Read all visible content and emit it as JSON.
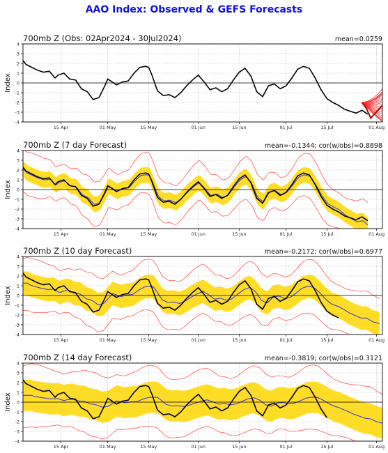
{
  "title": "AAO Index: Observed & GEFS Forecasts",
  "colors": {
    "title": "#1010e8",
    "observed": "#000000",
    "ensemble_member": "#ff2a2a",
    "ensemble_envelope": "#ff5555",
    "ensemble_spread": "#ffd700",
    "ensemble_mean": "#3f3fc8",
    "zero_line": "#000000",
    "grid": "#bbbbbb"
  },
  "chart_data": [
    {
      "type": "line",
      "title": "700mb Z (Obs: 02Apr2024 - 30Jul2024)",
      "stats": "mean=0.0259",
      "ylabel": "Index",
      "ylim": [
        -4,
        4
      ],
      "yticks": [
        "4",
        "3",
        "2",
        "1",
        "0",
        "-1",
        "-2",
        "-3",
        "-4"
      ],
      "xlim": [
        0,
        123
      ],
      "xticks": [
        {
          "x": 13,
          "label": "15 Apr"
        },
        {
          "x": 29,
          "label": "01 May"
        },
        {
          "x": 43,
          "label": "15 May"
        },
        {
          "x": 60,
          "label": "01 Jun"
        },
        {
          "x": 74,
          "label": "15 Jun"
        },
        {
          "x": 90,
          "label": "01 Jul"
        },
        {
          "x": 104,
          "label": "15 Jul"
        },
        {
          "x": 121,
          "label": "01 Aug"
        }
      ],
      "grid": true,
      "zero_line": true,
      "observed": {
        "x": [
          0,
          1,
          3,
          5,
          7,
          9,
          11,
          12,
          14,
          16,
          18,
          20,
          22,
          24,
          26,
          27,
          28,
          29,
          30,
          32,
          34,
          36,
          38,
          40,
          42,
          43,
          44,
          46,
          48,
          50,
          52,
          54,
          56,
          58,
          60,
          62,
          64,
          66,
          68,
          70,
          72,
          74,
          76,
          78,
          80,
          82,
          84,
          86,
          88,
          90,
          92,
          94,
          96,
          98,
          100,
          102,
          104,
          106,
          108,
          110,
          112,
          114,
          116,
          118
        ],
        "y": [
          2.3,
          1.9,
          1.6,
          1.3,
          1.1,
          1.2,
          0.5,
          0.8,
          1.0,
          0.4,
          0.3,
          -0.6,
          -0.9,
          -1.7,
          -1.5,
          -0.9,
          -0.3,
          0.4,
          0.2,
          -0.2,
          0.1,
          0.2,
          1.0,
          1.6,
          1.7,
          1.6,
          0.9,
          -0.8,
          -1.3,
          -1.2,
          -1.5,
          -1.0,
          -0.3,
          0.3,
          0.8,
          0.1,
          -0.7,
          -0.5,
          -0.9,
          -0.6,
          0.3,
          1.1,
          1.5,
          0.7,
          -0.9,
          -1.4,
          -0.3,
          -0.1,
          -0.6,
          -0.3,
          0.5,
          1.4,
          1.7,
          1.5,
          0.5,
          -0.7,
          -1.6,
          -2.0,
          -2.3,
          -2.7,
          -2.9,
          -3.1,
          -2.8,
          -3.2
        ]
      },
      "forecast_plume": {
        "start_x": 116,
        "start_y": -2.0,
        "end_x": 123,
        "member_ends": [
          -1.0,
          -1.4,
          -1.8,
          -2.2,
          -2.6,
          -3.0,
          -3.4,
          -3.8,
          -4.0,
          -0.6,
          -1.2,
          -2.8,
          -3.6,
          -2.4,
          -1.6,
          -0.9,
          -3.2,
          -3.9,
          -2.0,
          -1.1
        ],
        "mean_end": -2.3
      }
    },
    {
      "type": "line",
      "title": "700mb Z (7 day Forecast)",
      "stats": "mean=-0.1344; cor(w/obs)=0.8898",
      "ylabel": "Index",
      "ylim": [
        -4,
        4
      ],
      "yticks": [
        "4",
        "3",
        "2",
        "1",
        "0",
        "-1",
        "-2",
        "-3",
        "-4"
      ],
      "xlim": [
        0,
        123
      ],
      "xticks": [
        {
          "x": 13,
          "label": "15 Apr"
        },
        {
          "x": 29,
          "label": "01 May"
        },
        {
          "x": 43,
          "label": "15 May"
        },
        {
          "x": 60,
          "label": "01 Jun"
        },
        {
          "x": 74,
          "label": "15 Jun"
        },
        {
          "x": 90,
          "label": "01 Jul"
        },
        {
          "x": 104,
          "label": "15 Jul"
        },
        {
          "x": 121,
          "label": "01 Aug"
        }
      ],
      "grid": true,
      "zero_line": true,
      "forecast_end_x": 118,
      "observed_end_x": 118,
      "spread_half": 0.8,
      "envelope_half": 2.0,
      "mean_shift": 0.3,
      "mean_damp": 0.9
    },
    {
      "type": "line",
      "title": "700mb Z (10 day Forecast)",
      "stats": "mean=-0.2172; cor(w/obs)=0.6977",
      "ylabel": "Index",
      "ylim": [
        -4,
        4
      ],
      "yticks": [
        "4",
        "3",
        "2",
        "1",
        "0",
        "-1",
        "-2",
        "-3",
        "-4"
      ],
      "xlim": [
        0,
        123
      ],
      "xticks": [
        {
          "x": 13,
          "label": "15 Apr"
        },
        {
          "x": 29,
          "label": "01 May"
        },
        {
          "x": 43,
          "label": "15 May"
        },
        {
          "x": 60,
          "label": "01 Jun"
        },
        {
          "x": 74,
          "label": "15 Jun"
        },
        {
          "x": 90,
          "label": "01 Jul"
        },
        {
          "x": 104,
          "label": "15 Jul"
        },
        {
          "x": 121,
          "label": "01 Aug"
        }
      ],
      "grid": true,
      "zero_line": true,
      "forecast_end_x": 122,
      "observed_end_x": 108,
      "spread_half": 1.2,
      "envelope_half": 2.5,
      "mean_shift": 1.6,
      "mean_damp": 0.55
    },
    {
      "type": "line",
      "title": "700mb Z (14 day Forecast)",
      "stats": "mean=-0.3819; cor(w/obs)=0.3121",
      "ylabel": "Index",
      "ylim": [
        -4,
        4
      ],
      "yticks": [
        "4",
        "3",
        "2",
        "1",
        "0",
        "-1",
        "-2",
        "-3",
        "-4"
      ],
      "xlim": [
        0,
        123
      ],
      "xticks": [
        {
          "x": 13,
          "label": "15 Apr"
        },
        {
          "x": 29,
          "label": "01 May"
        },
        {
          "x": 43,
          "label": "15 May"
        },
        {
          "x": 60,
          "label": "01 Jun"
        },
        {
          "x": 74,
          "label": "15 Jun"
        },
        {
          "x": 90,
          "label": "01 Jul"
        },
        {
          "x": 104,
          "label": "15 Jul"
        },
        {
          "x": 121,
          "label": "01 Aug"
        }
      ],
      "grid": true,
      "zero_line": true,
      "forecast_end_x": 123,
      "observed_end_x": 104,
      "spread_half": 1.6,
      "envelope_half": 3.0,
      "mean_shift": 3.0,
      "mean_damp": 0.3
    }
  ]
}
